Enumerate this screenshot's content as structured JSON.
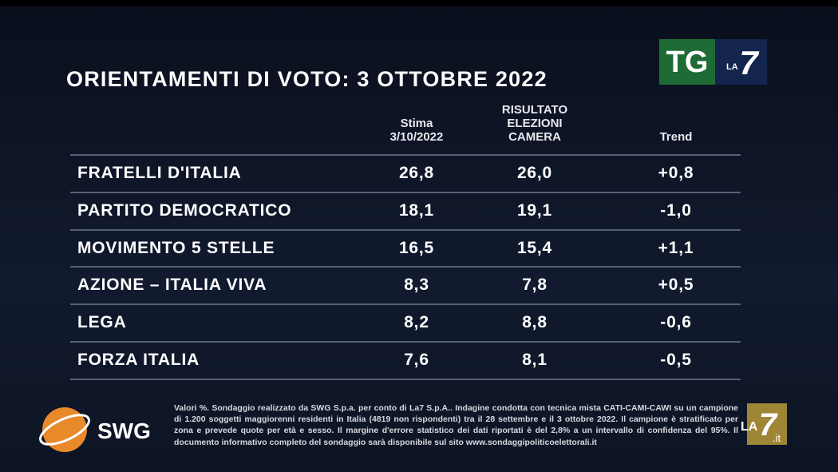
{
  "title": "ORIENTAMENTI DI VOTO: 3 OTTOBRE 2022",
  "table": {
    "columns": [
      [
        "Stima",
        "3/10/2022"
      ],
      [
        "RISULTATO",
        "ELEZIONI",
        "CAMERA"
      ],
      [
        "Trend"
      ]
    ],
    "rows": [
      [
        "FRATELLI D'ITALIA",
        "26,8",
        "26,0",
        "+0,8"
      ],
      [
        "PARTITO DEMOCRATICO",
        "18,1",
        "19,1",
        "-1,0"
      ],
      [
        "MOVIMENTO 5 STELLE",
        "16,5",
        "15,4",
        "+1,1"
      ],
      [
        "AZIONE – ITALIA VIVA",
        "8,3",
        "7,8",
        "+0,5"
      ],
      [
        "LEGA",
        "8,2",
        "8,8",
        "-0,6"
      ],
      [
        "FORZA ITALIA",
        "7,6",
        "8,1",
        "-0,5"
      ]
    ]
  },
  "footnote": "Valori %. Sondaggio realizzato da SWG S.p.a. per conto di La7 S.p.A.. Indagine condotta con tecnica mista CATI-CAMI-CAWI su un campione di 1.200 soggetti maggiorenni residenti in Italia (4819 non rispondenti) tra il 28 settembre e il 3 ottobre 2022. Il campione è stratificato per zona e prevede quote per età e sesso. Il margine d'errore statistico dei dati riportati è del 2,8% a un intervallo di confidenza del 95%. Il documento informativo completo del sondaggio sarà disponibile sul sito www.sondaggipoliticoelettorali.it",
  "logos": {
    "tg": "TG",
    "la": "LA",
    "seven": "7",
    "swg": "SWG",
    "corner_la": "LA",
    "corner_seven": "7",
    "corner_it": ".it"
  }
}
